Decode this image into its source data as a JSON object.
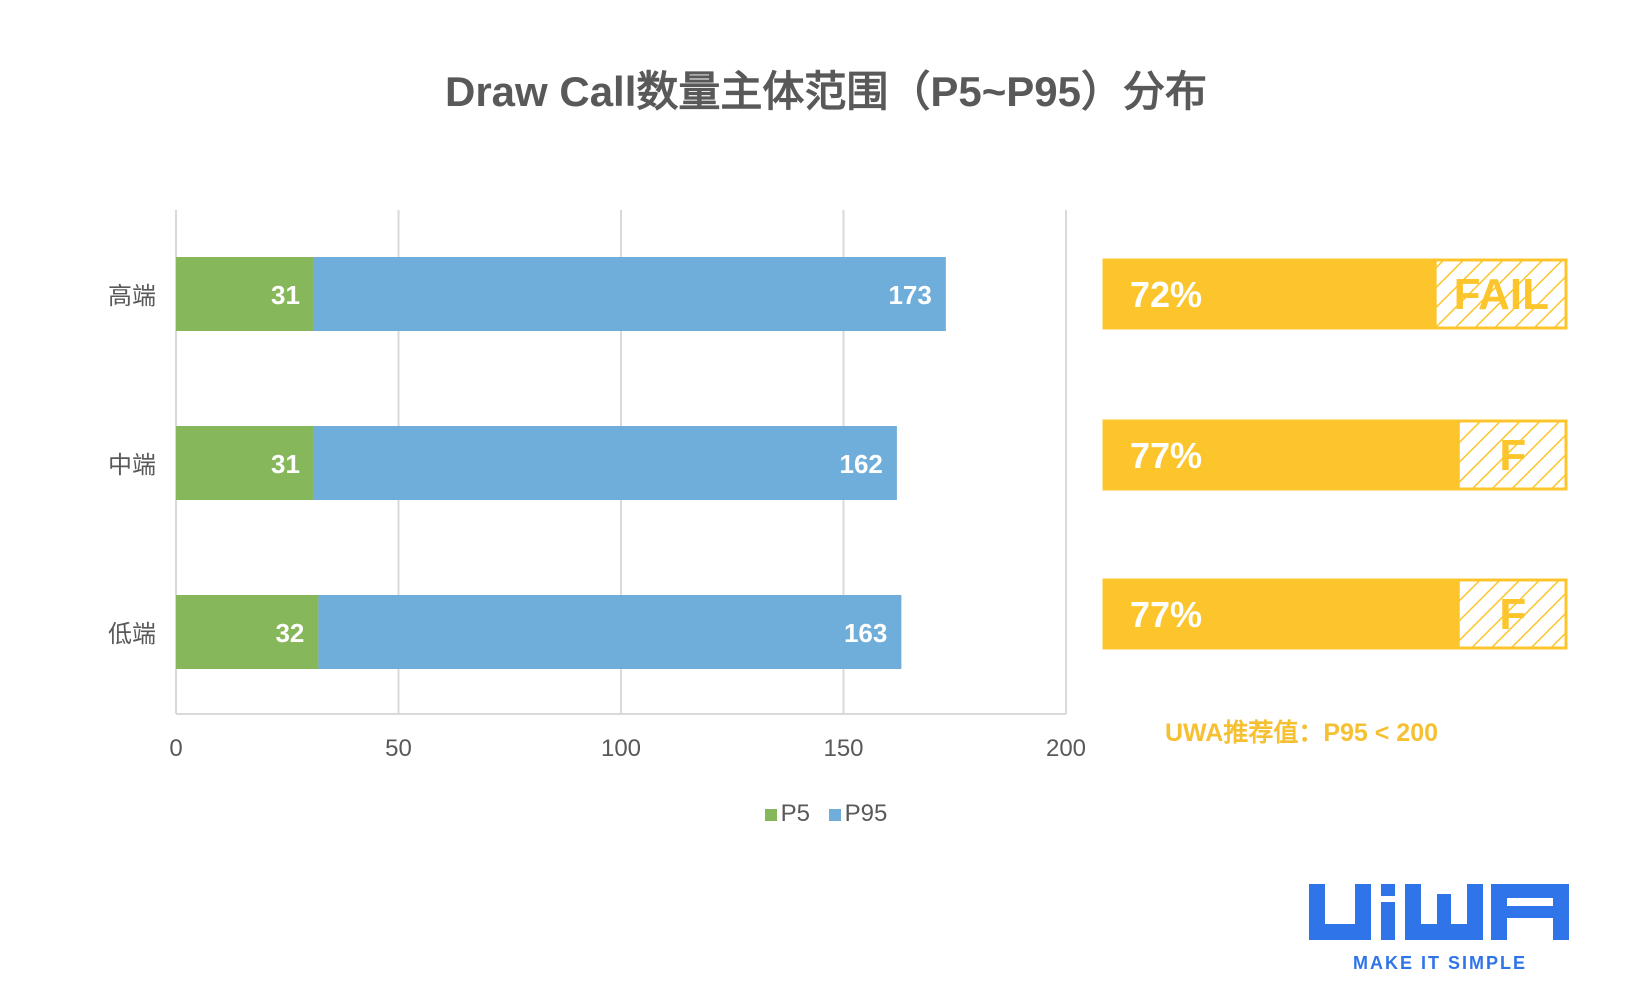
{
  "title": "Draw Call数量主体范围（P5~P95）分布",
  "chart_data": {
    "type": "bar",
    "orientation": "horizontal",
    "stacked": true,
    "categories": [
      "高端",
      "中端",
      "低端"
    ],
    "series": [
      {
        "name": "P5",
        "values": [
          31,
          31,
          32
        ],
        "color": "#86B75B"
      },
      {
        "name": "P95",
        "values": [
          173,
          162,
          163
        ],
        "color": "#6FADDB"
      }
    ],
    "xlim": [
      0,
      200
    ],
    "xticks": [
      0,
      50,
      100,
      150,
      200
    ],
    "xlabel": "",
    "ylabel": "",
    "grid": "vertical",
    "legend": "bottom-center"
  },
  "pass_rate": {
    "items": [
      {
        "label": "72%",
        "value": 0.72,
        "tag": "FAIL"
      },
      {
        "label": "77%",
        "value": 0.77,
        "tag": "F"
      },
      {
        "label": "77%",
        "value": 0.77,
        "tag": "F"
      }
    ],
    "bar_color": "#FCC52B",
    "recommendation": "UWA推荐值：P95 < 200"
  },
  "logo": {
    "text": "UWA",
    "tagline": "MAKE IT SIMPLE",
    "color": "#2F74E8"
  }
}
